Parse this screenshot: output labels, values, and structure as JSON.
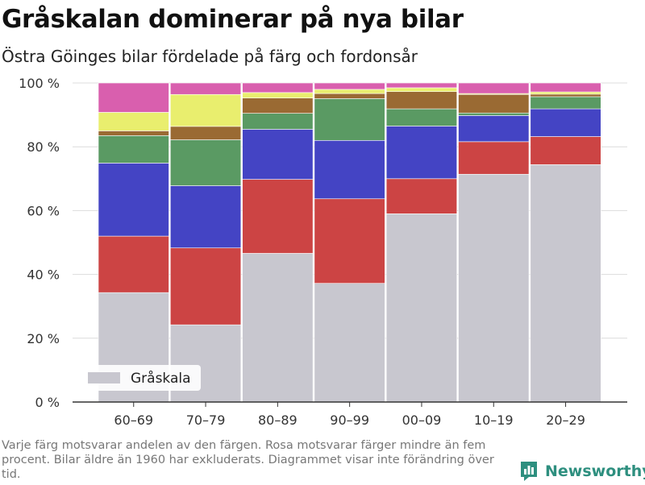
{
  "title": "Gråskalan dominerar på nya bilar",
  "subtitle": "Östra Göinges bilar fördelade på färg och fordonsår",
  "caption": "Varje färg motsvarar andelen av den färgen. Rosa motsvarar färger mindre än fem procent. Bilar äldre än 1960 har exkluderats. Diagrammet visar inte förändring över tid.",
  "brand": {
    "name": "Newsworthy",
    "icon": "newsworthy-chart-logo-icon",
    "color": "#2e8f7f"
  },
  "chart_data": {
    "type": "bar",
    "stacked": true,
    "categories": [
      "60–69",
      "70–79",
      "80–89",
      "90–99",
      "00–09",
      "10–19",
      "20–29"
    ],
    "y_ticks": [
      "0 %",
      "20 %",
      "40 %",
      "60 %",
      "80 %",
      "100 %"
    ],
    "ylim": [
      0,
      100
    ],
    "grid": true,
    "legend": {
      "position": "bottom-left",
      "entries": [
        "Gråskala"
      ]
    },
    "series": [
      {
        "name": "Gråskala",
        "color": "#c8c7cf",
        "values": [
          34.3,
          24.2,
          46.6,
          37.2,
          59.0,
          71.4,
          74.4
        ]
      },
      {
        "color": "#cc4444",
        "values": [
          17.7,
          24.1,
          23.2,
          26.5,
          11.0,
          10.2,
          8.8
        ]
      },
      {
        "color": "#4444c4",
        "values": [
          22.9,
          19.5,
          15.7,
          18.3,
          16.5,
          8.2,
          8.7
        ]
      },
      {
        "color": "#5a9a63",
        "values": [
          8.6,
          14.4,
          5.0,
          13.1,
          5.4,
          0.8,
          3.8
        ]
      },
      {
        "color": "#9a6a33",
        "values": [
          1.5,
          4.2,
          4.8,
          1.6,
          5.4,
          5.8,
          0.8
        ]
      },
      {
        "color": "#e9ee6e",
        "values": [
          5.8,
          10.0,
          1.7,
          1.3,
          1.2,
          0.3,
          0.7
        ]
      },
      {
        "color": "#d95fae",
        "values": [
          9.2,
          3.6,
          3.0,
          2.0,
          1.5,
          3.3,
          2.8
        ]
      }
    ]
  }
}
